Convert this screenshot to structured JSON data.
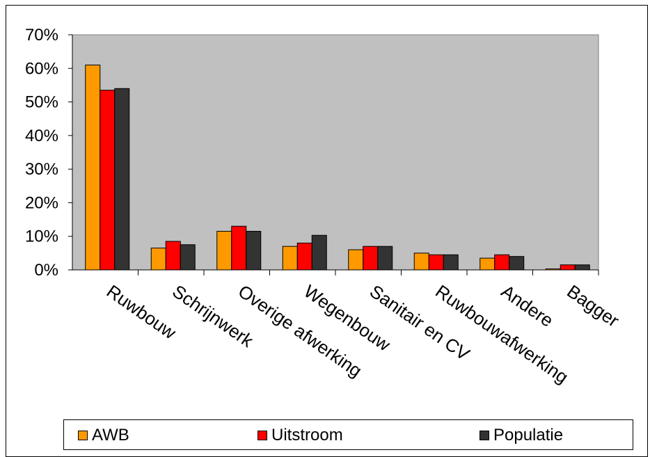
{
  "chart_data": {
    "type": "bar",
    "categories": [
      "Ruwbouw",
      "Schrijnwerk",
      "Overige afwerking",
      "Wegenbouw",
      "Sanitair en CV",
      "Ruwbouwafwerking",
      "Andere",
      "Bagger"
    ],
    "series": [
      {
        "name": "AWB",
        "color": "#FF9900",
        "values": [
          61,
          6.5,
          11.5,
          7,
          6,
          5,
          3.5,
          0.3
        ]
      },
      {
        "name": "Uitstroom",
        "color": "#FF0000",
        "values": [
          53.5,
          8.5,
          13,
          8,
          7,
          4.5,
          4.5,
          1.5
        ]
      },
      {
        "name": "Populatie",
        "color": "#333333",
        "values": [
          54,
          7.5,
          11.5,
          10.3,
          7,
          4.5,
          4,
          1.5
        ]
      }
    ],
    "yticks": [
      "0%",
      "10%",
      "20%",
      "30%",
      "40%",
      "50%",
      "60%",
      "70%"
    ],
    "ylim": [
      0,
      70
    ],
    "plot_background": "#C0C0C0",
    "grid": false,
    "legend_position": "bottom",
    "title": "",
    "xlabel": "",
    "ylabel": ""
  }
}
